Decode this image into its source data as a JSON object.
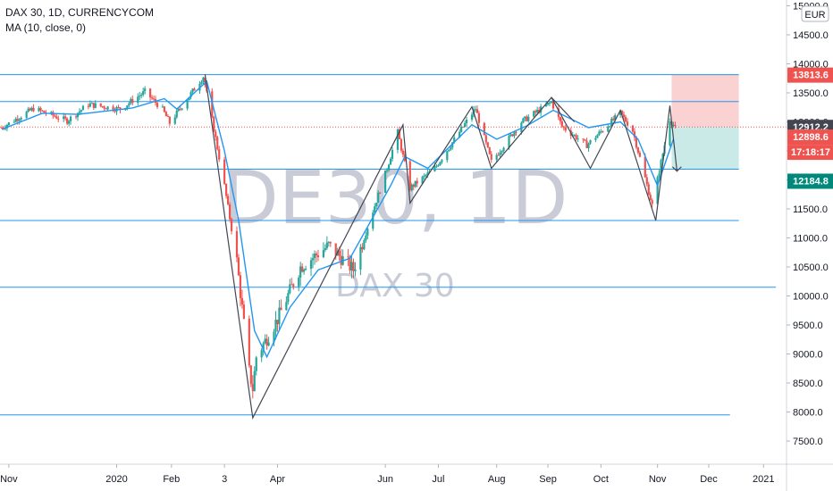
{
  "legend": {
    "symbol_line": "DAX 30, 1D, CURRENCYCOM",
    "indicator_line": "MA (10, close, 0)"
  },
  "watermark": {
    "main": "DE30, 1D",
    "sub": "DAX 30"
  },
  "currency": "EUR",
  "chart_data": {
    "type": "candlestick",
    "title": "DAX 30, 1D, CURRENCYCOM",
    "indicator": "MA (10, close, 0)",
    "y_axis": {
      "ylim": [
        7100,
        15100
      ],
      "ticks": [
        7500,
        8000,
        8500,
        9000,
        9500,
        10000,
        10500,
        11000,
        11500,
        12000,
        12500,
        13000,
        13500,
        14000,
        14500,
        15000
      ],
      "tick_labels": [
        "7500.0",
        "8000.0",
        "8500.0",
        "9000.0",
        "9500.0",
        "10000.0",
        "10500.0",
        "11000.0",
        "11500.0",
        "12000.0",
        "12500.0",
        "13000.0",
        "13500.0",
        "14000.0",
        "14500.0",
        "15000.0"
      ]
    },
    "x_axis": {
      "range": [
        "2019-10-27",
        "2021-01-14"
      ],
      "ticks": [
        {
          "date": "2019-11-01",
          "label": "Nov"
        },
        {
          "date": "2020-01-01",
          "label": "2020"
        },
        {
          "date": "2020-02-01",
          "label": "Feb"
        },
        {
          "date": "2020-03-02",
          "label": "3"
        },
        {
          "date": "2020-04-01",
          "label": "Apr"
        },
        {
          "date": "2020-06-01",
          "label": "Jun"
        },
        {
          "date": "2020-07-01",
          "label": "Jul"
        },
        {
          "date": "2020-08-03",
          "label": "Aug"
        },
        {
          "date": "2020-09-01",
          "label": "Sep"
        },
        {
          "date": "2020-10-01",
          "label": "Oct"
        },
        {
          "date": "2020-11-02",
          "label": "Nov"
        },
        {
          "date": "2020-12-01",
          "label": "Dec"
        },
        {
          "date": "2021-01-01",
          "label": "2021"
        }
      ]
    },
    "price_path": [
      {
        "date": "2019-10-28",
        "close": 12900
      },
      {
        "date": "2019-11-15",
        "close": 13230
      },
      {
        "date": "2019-12-04",
        "close": 13020
      },
      {
        "date": "2019-12-16",
        "close": 13300
      },
      {
        "date": "2020-01-03",
        "close": 13220
      },
      {
        "date": "2020-01-17",
        "close": 13520
      },
      {
        "date": "2020-01-27",
        "close": 13210
      },
      {
        "date": "2020-01-31",
        "close": 12980
      },
      {
        "date": "2020-02-19",
        "close": 13780
      },
      {
        "date": "2020-02-24",
        "close": 13040
      },
      {
        "date": "2020-03-02",
        "close": 11900
      },
      {
        "date": "2020-03-09",
        "close": 10600
      },
      {
        "date": "2020-03-16",
        "close": 8700
      },
      {
        "date": "2020-03-18",
        "close": 8400
      },
      {
        "date": "2020-03-20",
        "close": 8950
      },
      {
        "date": "2020-04-01",
        "close": 9600
      },
      {
        "date": "2020-04-14",
        "close": 10500
      },
      {
        "date": "2020-04-30",
        "close": 10870
      },
      {
        "date": "2020-05-14",
        "close": 10450
      },
      {
        "date": "2020-06-02",
        "close": 12200
      },
      {
        "date": "2020-06-08",
        "close": 12820
      },
      {
        "date": "2020-06-15",
        "close": 11860
      },
      {
        "date": "2020-06-29",
        "close": 12200
      },
      {
        "date": "2020-07-22",
        "close": 13230
      },
      {
        "date": "2020-07-31",
        "close": 12310
      },
      {
        "date": "2020-08-17",
        "close": 13000
      },
      {
        "date": "2020-09-03",
        "close": 13340
      },
      {
        "date": "2020-09-09",
        "close": 12920
      },
      {
        "date": "2020-09-23",
        "close": 12600
      },
      {
        "date": "2020-10-12",
        "close": 13150
      },
      {
        "date": "2020-10-19",
        "close": 12850
      },
      {
        "date": "2020-10-30",
        "close": 11560
      },
      {
        "date": "2020-11-09",
        "close": 13050
      },
      {
        "date": "2020-11-12",
        "close": 12898.6
      }
    ],
    "moving_average": [
      {
        "date": "2019-10-28",
        "value": 12870
      },
      {
        "date": "2019-11-20",
        "value": 13150
      },
      {
        "date": "2019-12-10",
        "value": 13130
      },
      {
        "date": "2020-01-10",
        "value": 13240
      },
      {
        "date": "2020-01-28",
        "value": 13400
      },
      {
        "date": "2020-02-04",
        "value": 13220
      },
      {
        "date": "2020-02-21",
        "value": 13700
      },
      {
        "date": "2020-03-02",
        "value": 12500
      },
      {
        "date": "2020-03-10",
        "value": 11300
      },
      {
        "date": "2020-03-19",
        "value": 9400
      },
      {
        "date": "2020-03-26",
        "value": 8950
      },
      {
        "date": "2020-04-08",
        "value": 9800
      },
      {
        "date": "2020-04-24",
        "value": 10450
      },
      {
        "date": "2020-05-12",
        "value": 10650
      },
      {
        "date": "2020-06-04",
        "value": 11900
      },
      {
        "date": "2020-06-12",
        "value": 12400
      },
      {
        "date": "2020-06-25",
        "value": 12200
      },
      {
        "date": "2020-07-20",
        "value": 12950
      },
      {
        "date": "2020-08-03",
        "value": 12700
      },
      {
        "date": "2020-08-20",
        "value": 12930
      },
      {
        "date": "2020-09-04",
        "value": 13200
      },
      {
        "date": "2020-09-24",
        "value": 12900
      },
      {
        "date": "2020-10-12",
        "value": 13000
      },
      {
        "date": "2020-10-22",
        "value": 12700
      },
      {
        "date": "2020-11-02",
        "value": 11900
      },
      {
        "date": "2020-11-11",
        "value": 12700
      }
    ],
    "horizontal_levels": [
      {
        "price": 13813.6,
        "from": "2019-10-27",
        "to": "2020-12-18"
      },
      {
        "price": 13350,
        "from": "2019-10-27",
        "to": "2020-12-18"
      },
      {
        "price": 12184.8,
        "from": "2019-10-27",
        "to": "2020-12-18"
      },
      {
        "price": 11300,
        "from": "2019-10-27",
        "to": "2020-12-18"
      },
      {
        "price": 10150,
        "from": "2019-10-27",
        "to": "2021-01-08"
      },
      {
        "price": 7950,
        "from": "2019-10-27",
        "to": "2020-12-13"
      }
    ],
    "pattern_lines": [
      [
        {
          "date": "2020-02-20",
          "price": 13820
        },
        {
          "date": "2020-03-18",
          "price": 7900
        },
        {
          "date": "2020-06-11",
          "price": 12950
        },
        {
          "date": "2020-06-15",
          "price": 11600
        },
        {
          "date": "2020-07-20",
          "price": 13260
        },
        {
          "date": "2020-07-31",
          "price": 12200
        },
        {
          "date": "2020-09-03",
          "price": 13420
        },
        {
          "date": "2020-09-25",
          "price": 12200
        },
        {
          "date": "2020-10-12",
          "price": 13200
        },
        {
          "date": "2020-11-01",
          "price": 11300
        },
        {
          "date": "2020-11-09",
          "price": 13280
        },
        {
          "date": "2020-11-13",
          "price": 12150
        }
      ],
      [
        {
          "date": "2020-09-03",
          "price": 13420
        },
        {
          "date": "2020-09-16",
          "price": 13000
        }
      ]
    ],
    "position": {
      "type": "short",
      "entry": 12912.2,
      "target": 12184.8,
      "stop": 13813.6,
      "start": "2020-11-10",
      "end": "2020-12-18"
    },
    "price_labels": {
      "stop": "13813.6",
      "entry": "12912.2",
      "current": "12898.6",
      "countdown": "17:18:17",
      "target": "12184.8"
    },
    "colors": {
      "up": "#26a69a",
      "down": "#ef5350",
      "ma": "#2196f3",
      "level": "#2196f3",
      "pattern": "#434651",
      "stop_zone": "#f9caca",
      "target_zone": "#c4e8e4",
      "target_badge": "#00897b",
      "entry_badge": "#434651"
    }
  }
}
